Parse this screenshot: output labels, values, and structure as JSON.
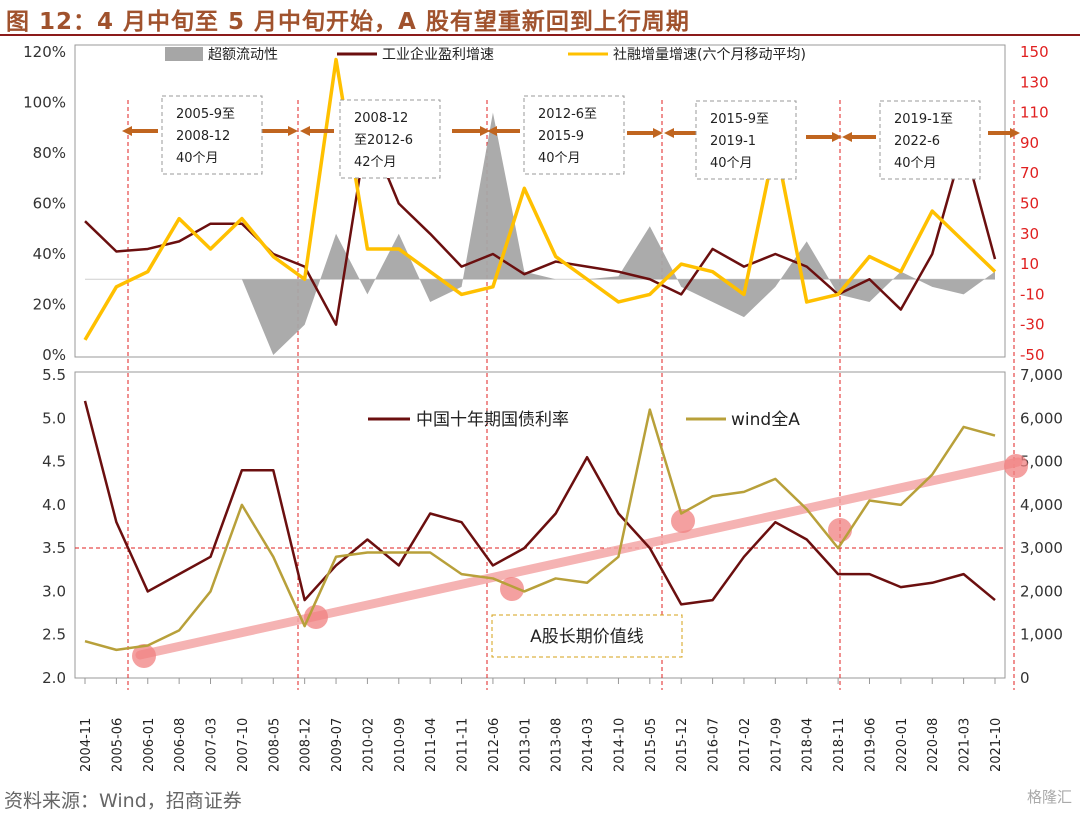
{
  "figure": {
    "title": "图 12：4 月中旬至 5 月中旬开始，A 股有望重新回到上行周期",
    "source": "资料来源：Wind，招商证券",
    "watermark": "格隆汇"
  },
  "colors": {
    "title": "#a0522d",
    "excess_liquidity": "#a6a6a6",
    "profit_growth": "#6b0f0f",
    "tsf_growth": "#ffc000",
    "bond_yield": "#6b0f0f",
    "wind_a": "#b8a03a",
    "value_line": "#f4a6a6",
    "cycle_arrow": "#c0651f",
    "red_axis": "#e02020"
  },
  "chart_data": [
    {
      "type": "line",
      "title": "",
      "x": [
        "2004-11",
        "2005-06",
        "2006-01",
        "2006-08",
        "2007-03",
        "2007-10",
        "2008-05",
        "2008-12",
        "2009-07",
        "2010-02",
        "2010-09",
        "2011-04",
        "2011-11",
        "2012-06",
        "2013-01",
        "2013-08",
        "2014-03",
        "2014-10",
        "2015-05",
        "2015-12",
        "2016-07",
        "2017-02",
        "2017-09",
        "2018-04",
        "2018-11",
        "2019-06",
        "2020-01",
        "2020-08",
        "2021-03",
        "2021-10"
      ],
      "ylim_left": [
        0,
        120
      ],
      "yticks_left": [
        "0%",
        "20%",
        "40%",
        "60%",
        "80%",
        "100%",
        "120%"
      ],
      "ylim_right": [
        -50,
        150
      ],
      "yticks_right": [
        "-50",
        "-30",
        "-10",
        "10",
        "30",
        "50",
        "70",
        "90",
        "110",
        "130",
        "150"
      ],
      "series": [
        {
          "name": "超额流动性",
          "type": "area",
          "axis": "right",
          "values": [
            0,
            0,
            0,
            0,
            0,
            0,
            -50,
            -30,
            30,
            -10,
            30,
            -15,
            -5,
            110,
            5,
            0,
            0,
            2,
            35,
            -5,
            -15,
            -25,
            -5,
            25,
            -10,
            -15,
            5,
            -5,
            -10,
            5
          ]
        },
        {
          "name": "工业企业盈利增速",
          "type": "line",
          "axis": "left",
          "values": [
            53,
            41,
            42,
            45,
            52,
            52,
            40,
            35,
            12,
            90,
            60,
            48,
            35,
            40,
            32,
            37,
            35,
            33,
            30,
            24,
            42,
            35,
            40,
            35,
            24,
            30,
            18,
            40,
            84,
            38
          ]
        },
        {
          "name": "社融增量增速(六个月移动平均)",
          "type": "line",
          "axis": "right",
          "values": [
            -40,
            -5,
            5,
            40,
            20,
            40,
            15,
            0,
            145,
            20,
            20,
            5,
            -10,
            -5,
            60,
            15,
            0,
            -15,
            -10,
            10,
            5,
            -10,
            90,
            -15,
            -10,
            15,
            5,
            45,
            25,
            5
          ]
        }
      ],
      "cycles": [
        {
          "label": "2005-9至\n2008-12\n40个月"
        },
        {
          "label": "2008-12\n至2012-6\n42个月"
        },
        {
          "label": "2012-6至\n2015-9\n40个月"
        },
        {
          "label": "2015-9至\n2019-1\n40个月"
        },
        {
          "label": "2019-1至\n2022-6\n40个月"
        }
      ]
    },
    {
      "type": "line",
      "title": "",
      "x": [
        "2004-11",
        "2005-06",
        "2006-01",
        "2006-08",
        "2007-03",
        "2007-10",
        "2008-05",
        "2008-12",
        "2009-07",
        "2010-02",
        "2010-09",
        "2011-04",
        "2011-11",
        "2012-06",
        "2013-01",
        "2013-08",
        "2014-03",
        "2014-10",
        "2015-05",
        "2015-12",
        "2016-07",
        "2017-02",
        "2017-09",
        "2018-04",
        "2018-11",
        "2019-06",
        "2020-01",
        "2020-08",
        "2021-03",
        "2021-10"
      ],
      "ylim_left": [
        2.0,
        5.5
      ],
      "yticks_left": [
        "2.0",
        "2.5",
        "3.0",
        "3.5",
        "4.0",
        "4.5",
        "5.0",
        "5.5"
      ],
      "ylim_right": [
        0,
        7000
      ],
      "yticks_right": [
        "0",
        "1,000",
        "2,000",
        "3,000",
        "4,000",
        "5,000",
        "6,000",
        "7,000"
      ],
      "series": [
        {
          "name": "中国十年期国债利率",
          "type": "line",
          "axis": "left",
          "values": [
            5.2,
            3.8,
            3.0,
            3.2,
            3.4,
            4.4,
            4.4,
            2.9,
            3.3,
            3.6,
            3.3,
            3.9,
            3.8,
            3.3,
            3.5,
            3.9,
            4.55,
            3.9,
            3.5,
            2.85,
            2.9,
            3.4,
            3.8,
            3.6,
            3.2,
            3.2,
            3.05,
            3.1,
            3.2,
            2.9
          ]
        },
        {
          "name": "wind全A",
          "type": "line",
          "axis": "right",
          "values": [
            850,
            650,
            750,
            1100,
            2000,
            4000,
            2800,
            1200,
            2800,
            2900,
            2900,
            2900,
            2400,
            2300,
            2000,
            2300,
            2200,
            2800,
            6200,
            3800,
            4200,
            4300,
            4600,
            3900,
            3000,
            4100,
            4000,
            4700,
            5800,
            5600
          ]
        }
      ],
      "value_line": {
        "label": "A股长期价值线",
        "from": 600,
        "to": 5100
      }
    }
  ]
}
